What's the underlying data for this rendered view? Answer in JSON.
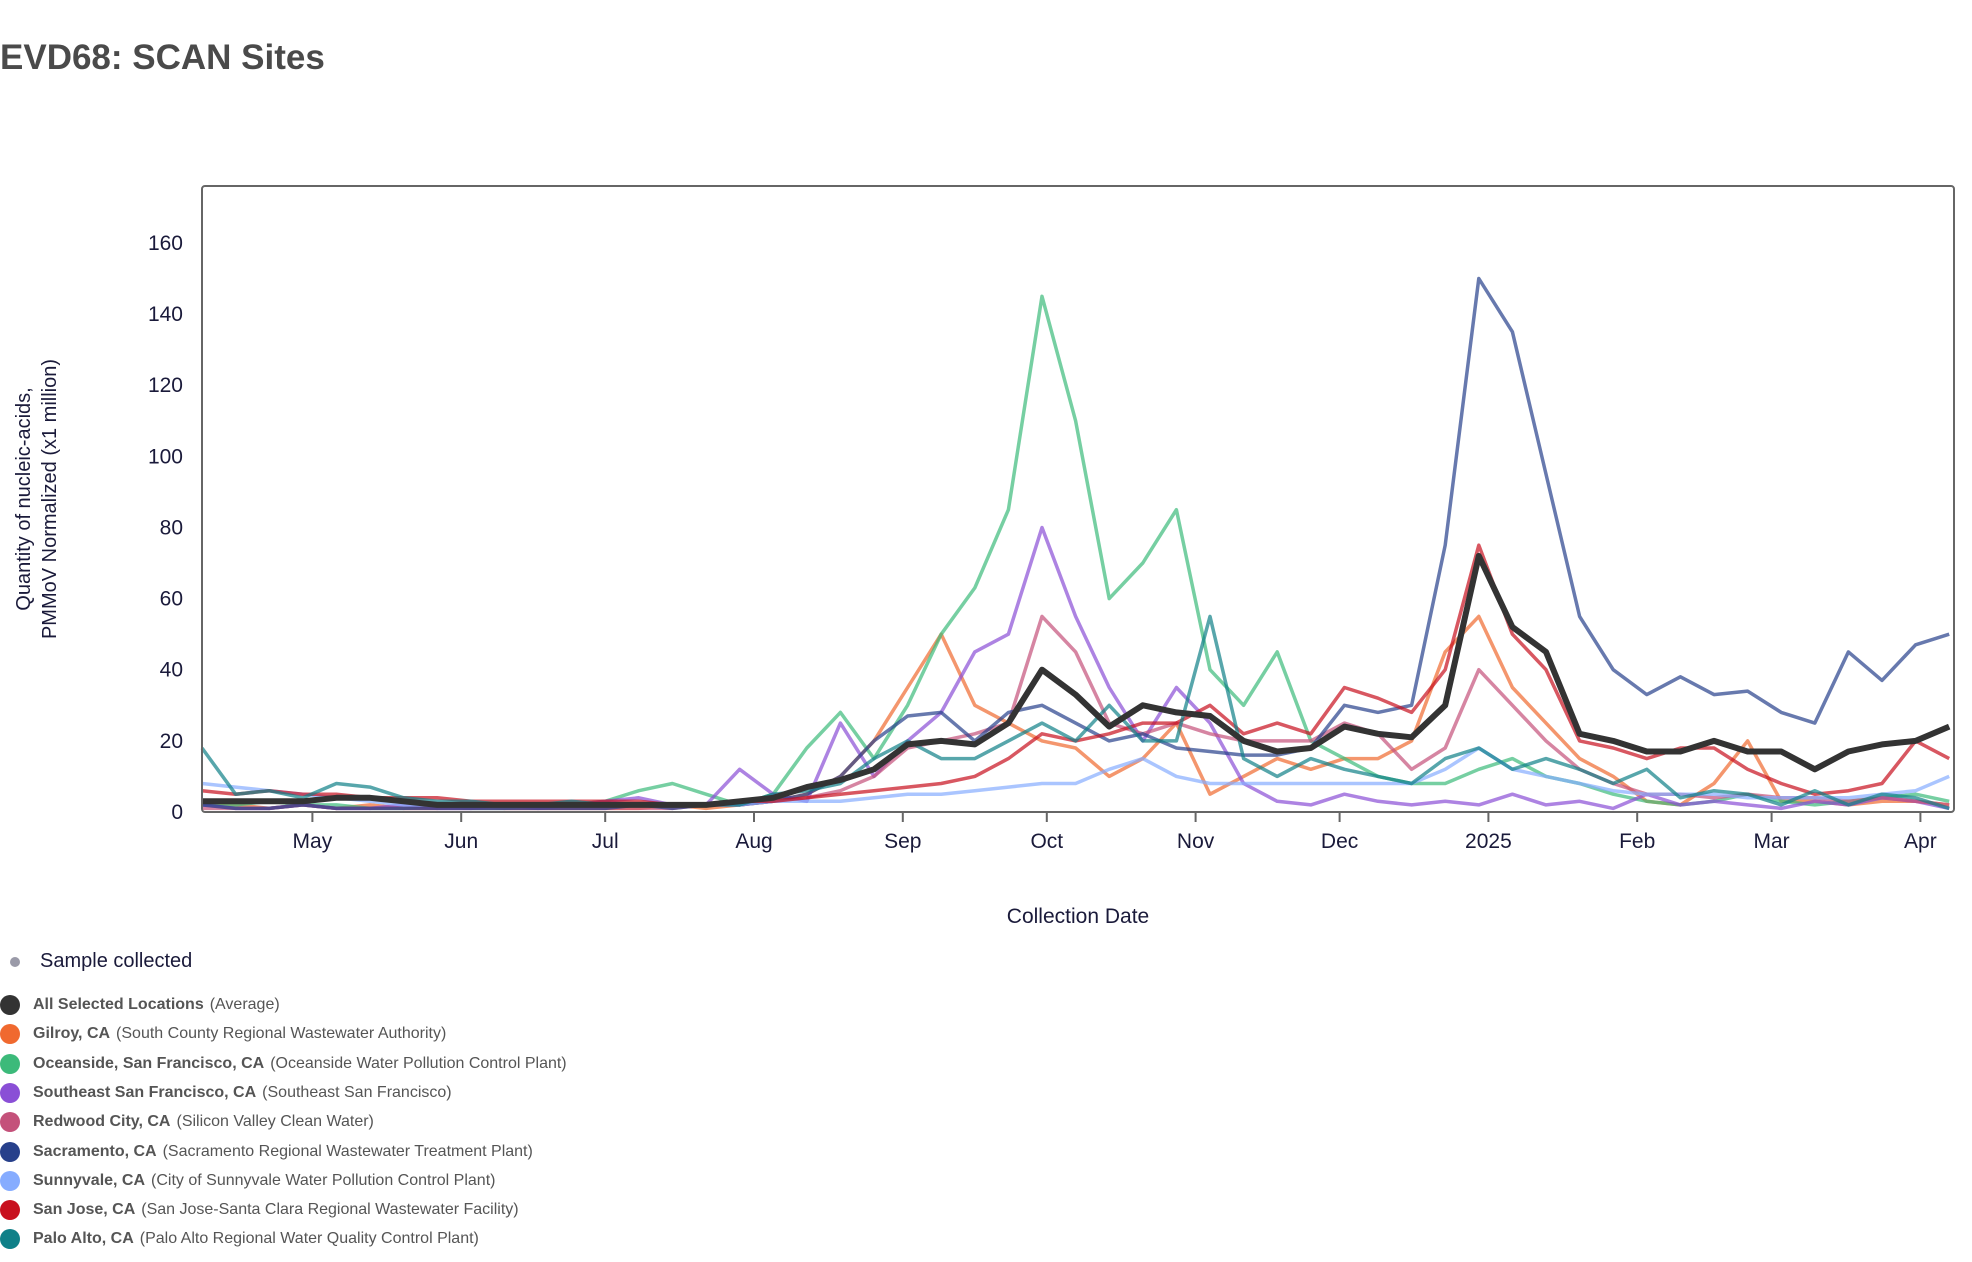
{
  "title": "EVD68: SCAN Sites",
  "legend": {
    "sample_label": "Sample collected",
    "items": [
      {
        "name": "All Selected Locations",
        "desc": "(Average)",
        "color": "#333333"
      },
      {
        "name": "Gilroy, CA",
        "desc": "(South County Regional Wastewater Authority)",
        "color": "#f0692f"
      },
      {
        "name": "Oceanside, San Francisco, CA",
        "desc": "(Oceanside Water Pollution Control Plant)",
        "color": "#3cba7a"
      },
      {
        "name": "Southeast San Francisco, CA",
        "desc": "(Southeast San Francisco)",
        "color": "#8a4fd6"
      },
      {
        "name": "Redwood City, CA",
        "desc": "(Silicon Valley Clean Water)",
        "color": "#c4517a"
      },
      {
        "name": "Sacramento, CA",
        "desc": "(Sacramento Regional Wastewater Treatment Plant)",
        "color": "#27408b"
      },
      {
        "name": "Sunnyvale, CA",
        "desc": "(City of Sunnyvale Water Pollution Control Plant)",
        "color": "#86acff"
      },
      {
        "name": "San Jose, CA",
        "desc": "(San Jose-Santa Clara Regional Wastewater Facility)",
        "color": "#c8101e"
      },
      {
        "name": "Palo Alto, CA",
        "desc": "(Palo Alto Regional Water Quality Control Plant)",
        "color": "#0f8088"
      }
    ]
  },
  "chart_data": {
    "type": "line",
    "xlabel": "Collection Date",
    "ylabel": [
      "Quantity of nucleic-acids,",
      "PMMoV Normalized (x1 million)"
    ],
    "xlim": [
      "2024-04-08",
      "2025-04-08"
    ],
    "ylim": [
      0,
      176
    ],
    "yticks": [
      0,
      20,
      40,
      60,
      80,
      100,
      120,
      140,
      160
    ],
    "xticks": [
      {
        "date": "2024-05-01",
        "label": "May"
      },
      {
        "date": "2024-06-01",
        "label": "Jun"
      },
      {
        "date": "2024-07-01",
        "label": "Jul"
      },
      {
        "date": "2024-08-01",
        "label": "Aug"
      },
      {
        "date": "2024-09-01",
        "label": "Sep"
      },
      {
        "date": "2024-10-01",
        "label": "Oct"
      },
      {
        "date": "2024-11-01",
        "label": "Nov"
      },
      {
        "date": "2024-12-01",
        "label": "Dec"
      },
      {
        "date": "2025-01-01",
        "label": "2025"
      },
      {
        "date": "2025-02-01",
        "label": "Feb"
      },
      {
        "date": "2025-03-01",
        "label": "Mar"
      },
      {
        "date": "2025-04-01",
        "label": "Apr"
      }
    ],
    "x_start": "2024-04-08",
    "x_step_days": 7,
    "grid": false,
    "series": [
      {
        "name": "Gilroy, CA",
        "color": "#f0692f",
        "values": [
          2,
          2,
          1,
          2,
          1,
          2,
          1,
          1,
          2,
          1,
          1,
          1,
          1,
          1,
          2,
          1,
          2,
          3,
          5,
          10,
          20,
          35,
          50,
          30,
          25,
          20,
          18,
          10,
          15,
          25,
          5,
          10,
          15,
          12,
          15,
          15,
          20,
          45,
          55,
          35,
          25,
          15,
          10,
          3,
          2,
          8,
          20,
          3,
          3,
          2,
          3,
          3,
          2
        ]
      },
      {
        "name": "Oceanside, San Francisco, CA",
        "color": "#3cba7a",
        "values": [
          2,
          2,
          3,
          2,
          2,
          1,
          1,
          2,
          1,
          1,
          2,
          2,
          3,
          6,
          8,
          5,
          2,
          5,
          18,
          28,
          15,
          30,
          50,
          63,
          85,
          145,
          110,
          60,
          70,
          85,
          40,
          30,
          45,
          20,
          15,
          10,
          8,
          8,
          12,
          15,
          10,
          8,
          5,
          3,
          2,
          3,
          5,
          3,
          2,
          3,
          4,
          5,
          3
        ]
      },
      {
        "name": "Southeast San Francisco, CA",
        "color": "#8a4fd6",
        "values": [
          2,
          1,
          1,
          2,
          1,
          1,
          2,
          1,
          1,
          2,
          1,
          2,
          3,
          4,
          2,
          2,
          12,
          5,
          3,
          25,
          10,
          20,
          28,
          45,
          50,
          80,
          55,
          35,
          20,
          35,
          25,
          8,
          3,
          2,
          5,
          3,
          2,
          3,
          2,
          5,
          2,
          3,
          1,
          5,
          2,
          3,
          2,
          1,
          3,
          2,
          4,
          3,
          1
        ]
      },
      {
        "name": "Redwood City, CA",
        "color": "#c4517a",
        "values": [
          1,
          1,
          1,
          2,
          1,
          1,
          1,
          1,
          1,
          1,
          1,
          1,
          1,
          1,
          1,
          2,
          2,
          3,
          4,
          6,
          10,
          18,
          20,
          22,
          25,
          55,
          45,
          25,
          22,
          25,
          22,
          20,
          20,
          20,
          25,
          22,
          12,
          18,
          40,
          30,
          20,
          12,
          8,
          5,
          5,
          4,
          5,
          4,
          4,
          3,
          4,
          3,
          2
        ]
      },
      {
        "name": "Sacramento, CA",
        "color": "#27408b",
        "values": [
          2,
          1,
          1,
          2,
          1,
          1,
          1,
          1,
          1,
          1,
          1,
          1,
          1,
          2,
          1,
          2,
          2,
          3,
          5,
          10,
          20,
          27,
          28,
          20,
          28,
          30,
          25,
          20,
          22,
          18,
          17,
          16,
          16,
          18,
          30,
          28,
          30,
          75,
          150,
          135,
          95,
          55,
          40,
          33,
          38,
          33,
          34,
          28,
          25,
          45,
          37,
          47,
          50
        ]
      },
      {
        "name": "Sunnyvale, CA",
        "color": "#86acff",
        "values": [
          8,
          7,
          6,
          5,
          4,
          3,
          2,
          2,
          2,
          2,
          2,
          2,
          2,
          2,
          2,
          2,
          2,
          3,
          3,
          3,
          4,
          5,
          5,
          6,
          7,
          8,
          8,
          12,
          15,
          10,
          8,
          8,
          8,
          8,
          8,
          8,
          8,
          12,
          18,
          12,
          10,
          8,
          6,
          5,
          5,
          5,
          4,
          4,
          4,
          4,
          5,
          6,
          10
        ]
      },
      {
        "name": "San Jose, CA",
        "color": "#c8101e",
        "values": [
          6,
          5,
          6,
          5,
          5,
          4,
          4,
          4,
          3,
          3,
          3,
          3,
          3,
          3,
          2,
          2,
          3,
          3,
          4,
          5,
          6,
          7,
          8,
          10,
          15,
          22,
          20,
          22,
          25,
          25,
          30,
          22,
          25,
          22,
          35,
          32,
          28,
          40,
          75,
          50,
          40,
          20,
          18,
          15,
          18,
          18,
          12,
          8,
          5,
          6,
          8,
          20,
          15
        ]
      },
      {
        "name": "Palo Alto, CA",
        "color": "#0f8088",
        "values": [
          18,
          5,
          6,
          4,
          8,
          7,
          4,
          3,
          3,
          2,
          2,
          3,
          2,
          2,
          2,
          2,
          2,
          5,
          6,
          8,
          15,
          20,
          15,
          15,
          20,
          25,
          20,
          30,
          20,
          20,
          55,
          15,
          10,
          15,
          12,
          10,
          8,
          15,
          18,
          12,
          15,
          12,
          8,
          12,
          4,
          6,
          5,
          2,
          6,
          2,
          5,
          4,
          1
        ]
      },
      {
        "name": "All Selected Locations",
        "color": "#333333",
        "values": [
          3,
          3,
          3,
          3,
          4,
          4,
          3,
          2,
          2,
          2,
          2,
          2,
          2,
          2,
          2,
          2,
          3,
          4,
          7,
          9,
          12,
          19,
          20,
          19,
          25,
          40,
          33,
          24,
          30,
          28,
          27,
          20,
          17,
          18,
          24,
          22,
          21,
          30,
          72,
          52,
          45,
          22,
          20,
          17,
          17,
          20,
          17,
          17,
          12,
          17,
          19,
          20,
          24
        ]
      }
    ]
  }
}
